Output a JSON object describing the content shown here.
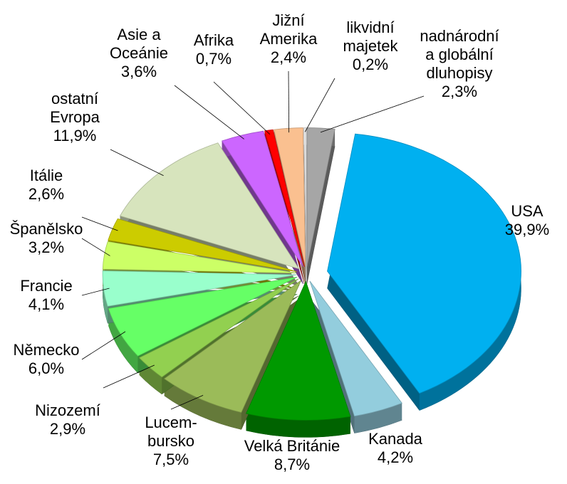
{
  "chart_data": {
    "type": "pie",
    "categories": [
      "nadnárodní\na globální\ndluhopisy",
      "USA",
      "Kanada",
      "Velká Británie",
      "Lucem-\nbursko",
      "Nizozemí",
      "Německo",
      "Francie",
      "Španělsko",
      "Itálie",
      "ostatní\nEvropa",
      "Asie a\nOceánie",
      "Afrika",
      "Jižní\nAmerika",
      "likvidní\nmajetek"
    ],
    "values": [
      2.3,
      39.9,
      4.2,
      8.7,
      7.5,
      2.9,
      6.0,
      4.1,
      3.2,
      2.6,
      11.9,
      3.6,
      0.7,
      2.4,
      0.2
    ],
    "value_labels": [
      "2,3%",
      "39,9%",
      "4,2%",
      "8,7%",
      "7,5%",
      "2,9%",
      "6,0%",
      "4,1%",
      "3,2%",
      "2,6%",
      "11,9%",
      "3,6%",
      "0,7%",
      "2,4%",
      "0,2%"
    ],
    "colors": [
      "#a6a6a6",
      "#00b0f0",
      "#93cddd",
      "#009900",
      "#9bbb59",
      "#92d050",
      "#66ff66",
      "#99ffcc",
      "#ccff66",
      "#cccc00",
      "#d7e4bd",
      "#cc66ff",
      "#ff0000",
      "#fac090",
      "#e6e6e6"
    ]
  }
}
